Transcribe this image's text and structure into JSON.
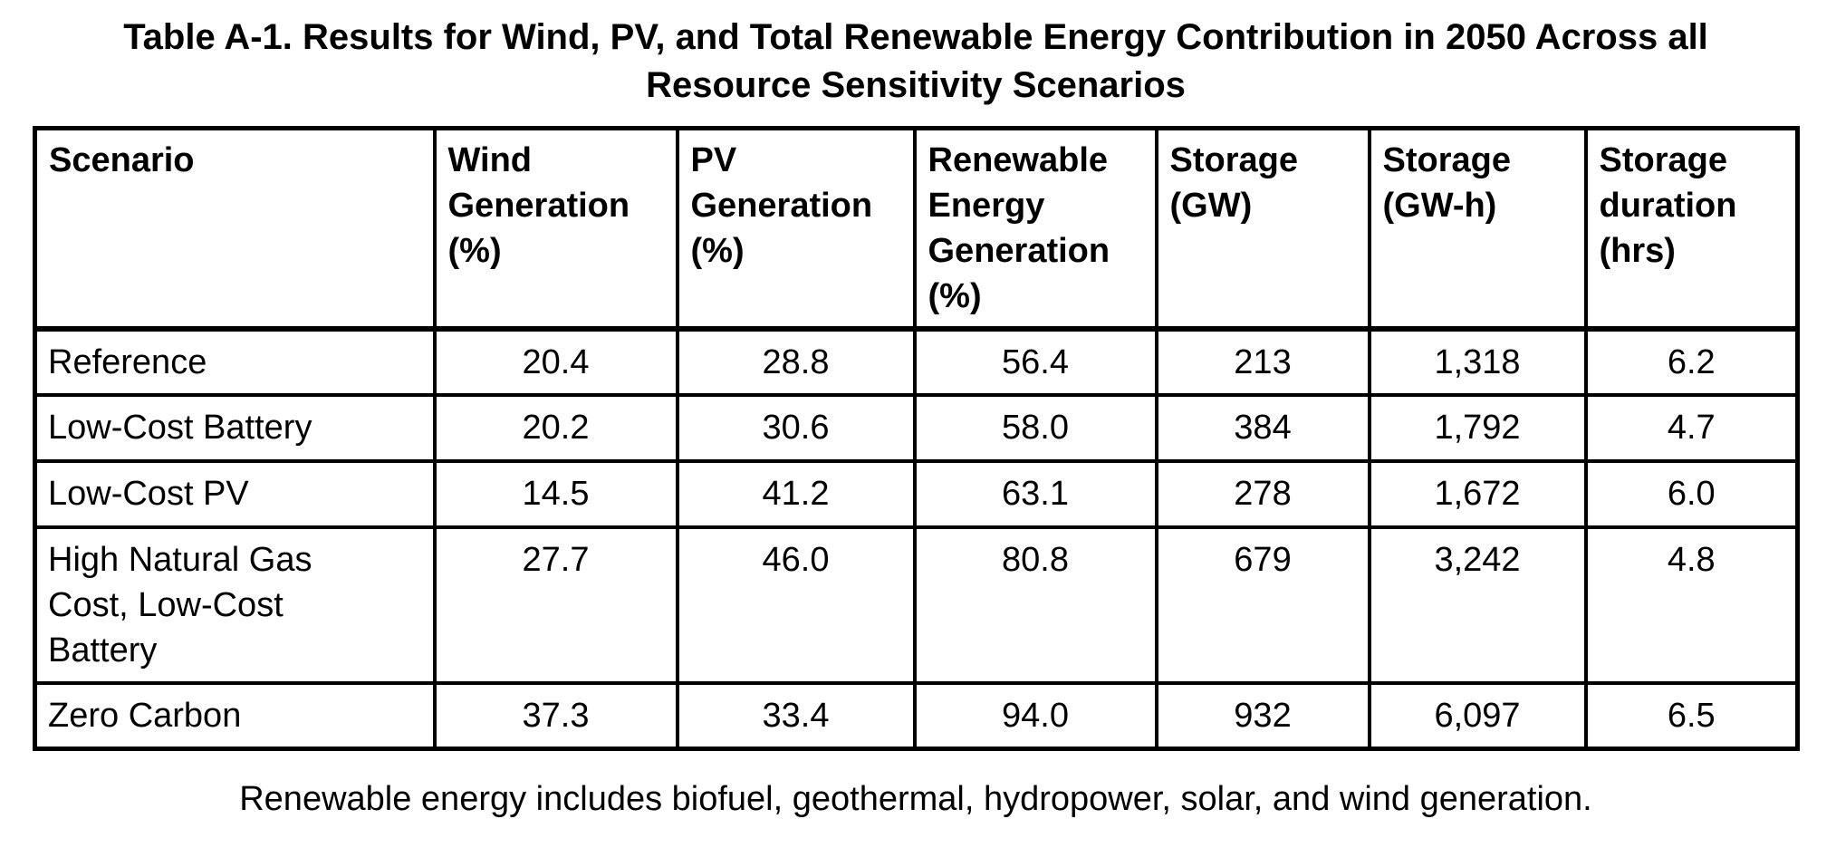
{
  "title": "Table A-1. Results for Wind, PV, and Total Renewable Energy Contribution in 2050 Across all\nResource Sensitivity Scenarios",
  "table": {
    "columns": [
      "Scenario",
      "Wind\nGeneration\n(%)",
      "PV\nGeneration\n(%)",
      "Renewable\nEnergy\nGeneration\n(%)",
      "Storage\n(GW)",
      "Storage\n(GW-h)",
      "Storage\nduration\n(hrs)"
    ],
    "rows": [
      {
        "scenario": "Reference",
        "values": [
          "20.4",
          "28.8",
          "56.4",
          "213",
          "1,318",
          "6.2"
        ]
      },
      {
        "scenario": "Low-Cost Battery",
        "values": [
          "20.2",
          "30.6",
          "58.0",
          "384",
          "1,792",
          "4.7"
        ]
      },
      {
        "scenario": "Low-Cost PV",
        "values": [
          "14.5",
          "41.2",
          "63.1",
          "278",
          "1,672",
          "6.0"
        ]
      },
      {
        "scenario": "High Natural Gas\nCost, Low-Cost\nBattery",
        "values": [
          "27.7",
          "46.0",
          "80.8",
          "679",
          "3,242",
          "4.8"
        ]
      },
      {
        "scenario": "Zero Carbon",
        "values": [
          "37.3",
          "33.4",
          "94.0",
          "932",
          "6,097",
          "6.5"
        ]
      }
    ]
  },
  "footnote": "Renewable energy includes biofuel, geothermal, hydropower, solar, and wind generation.",
  "colors": {
    "text": "#000000",
    "background": "#ffffff",
    "border": "#000000"
  }
}
